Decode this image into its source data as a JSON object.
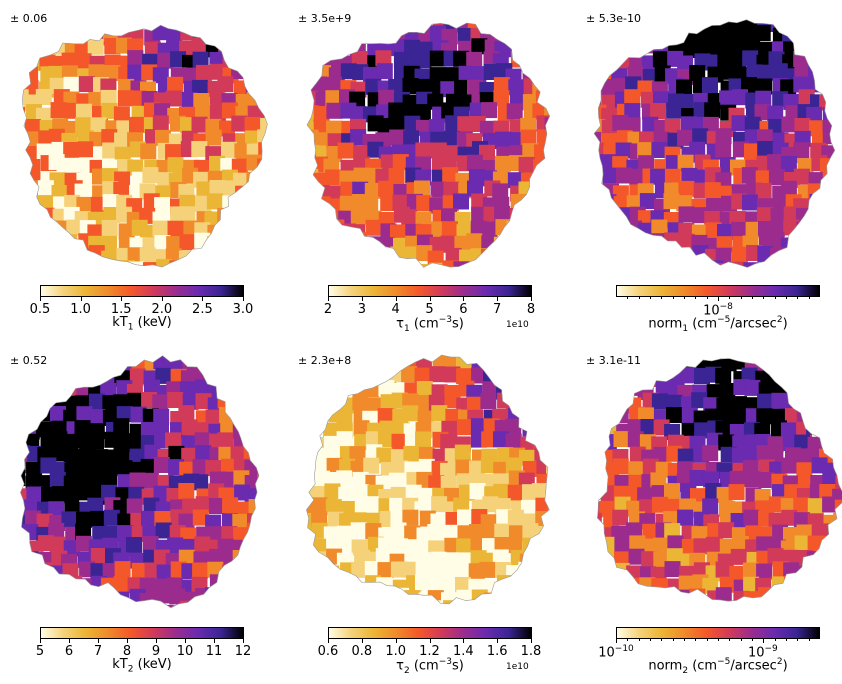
{
  "chart_data": [
    {
      "type": "heatmap",
      "uncertainty": "± 0.06",
      "colorbar": {
        "label_parts": [
          {
            "t": "kT"
          },
          {
            "t": "1",
            "sub": true
          },
          {
            "t": " (keV)"
          }
        ],
        "scale": "linear",
        "range": [
          0.5,
          3.0
        ],
        "ticks": [
          "0.5",
          "1.0",
          "1.5",
          "2.0",
          "2.5",
          "3.0"
        ],
        "offset": ""
      },
      "bright_region": "top-right rim"
    },
    {
      "type": "heatmap",
      "uncertainty": "± 3.5e+9",
      "colorbar": {
        "label_parts": [
          {
            "t": "τ"
          },
          {
            "t": "1",
            "sub": true
          },
          {
            "t": " (cm"
          },
          {
            "t": "−3",
            "sup": true
          },
          {
            "t": "s)"
          }
        ],
        "scale": "linear",
        "range": [
          2,
          8
        ],
        "ticks": [
          "2",
          "3",
          "4",
          "5",
          "6",
          "7",
          "8"
        ],
        "offset": "1e10"
      },
      "bright_region": "upper center"
    },
    {
      "type": "heatmap",
      "uncertainty": "± 5.3e-10",
      "colorbar": {
        "label_parts": [
          {
            "t": "norm"
          },
          {
            "t": "1",
            "sub": true
          },
          {
            "t": " (cm"
          },
          {
            "t": "−5",
            "sup": true
          },
          {
            "t": "/arcsec"
          },
          {
            "t": "2",
            "sup": true
          },
          {
            "t": ")"
          }
        ],
        "scale": "log",
        "ticks": [
          {
            "base": "10",
            "exp": "−8"
          }
        ],
        "offset": ""
      },
      "bright_region": "top"
    },
    {
      "type": "heatmap",
      "uncertainty": "± 0.52",
      "colorbar": {
        "label_parts": [
          {
            "t": "kT"
          },
          {
            "t": "2",
            "sub": true
          },
          {
            "t": " (keV)"
          }
        ],
        "scale": "linear",
        "range": [
          5,
          12
        ],
        "ticks": [
          "5",
          "6",
          "7",
          "8",
          "9",
          "10",
          "11",
          "12"
        ],
        "offset": ""
      },
      "bright_region": "left center"
    },
    {
      "type": "heatmap",
      "uncertainty": "± 2.3e+8",
      "colorbar": {
        "label_parts": [
          {
            "t": "τ"
          },
          {
            "t": "2",
            "sub": true
          },
          {
            "t": " (cm"
          },
          {
            "t": "−3",
            "sup": true
          },
          {
            "t": "s)"
          }
        ],
        "scale": "linear",
        "range": [
          0.6,
          1.8
        ],
        "ticks": [
          "0.6",
          "0.8",
          "1.0",
          "1.2",
          "1.4",
          "1.6",
          "1.8"
        ],
        "offset": "1e10"
      },
      "bright_region": "top-right rim"
    },
    {
      "type": "heatmap",
      "uncertainty": "± 3.1e-11",
      "colorbar": {
        "label_parts": [
          {
            "t": "norm"
          },
          {
            "t": "2",
            "sub": true
          },
          {
            "t": " (cm"
          },
          {
            "t": "−5",
            "sup": true
          },
          {
            "t": "/arcsec"
          },
          {
            "t": "2",
            "sup": true
          },
          {
            "t": ")"
          }
        ],
        "scale": "log",
        "ticks": [
          {
            "base": "10",
            "exp": "−10"
          },
          {
            "base": "10",
            "exp": "−9"
          }
        ],
        "offset": ""
      },
      "bright_region": "top"
    }
  ],
  "colormap": [
    "#fffde6",
    "#f5d27a",
    "#ebb535",
    "#f08a2a",
    "#f4582a",
    "#d23a5a",
    "#9b2c8e",
    "#6a2bb0",
    "#3b2595",
    "#000000"
  ]
}
